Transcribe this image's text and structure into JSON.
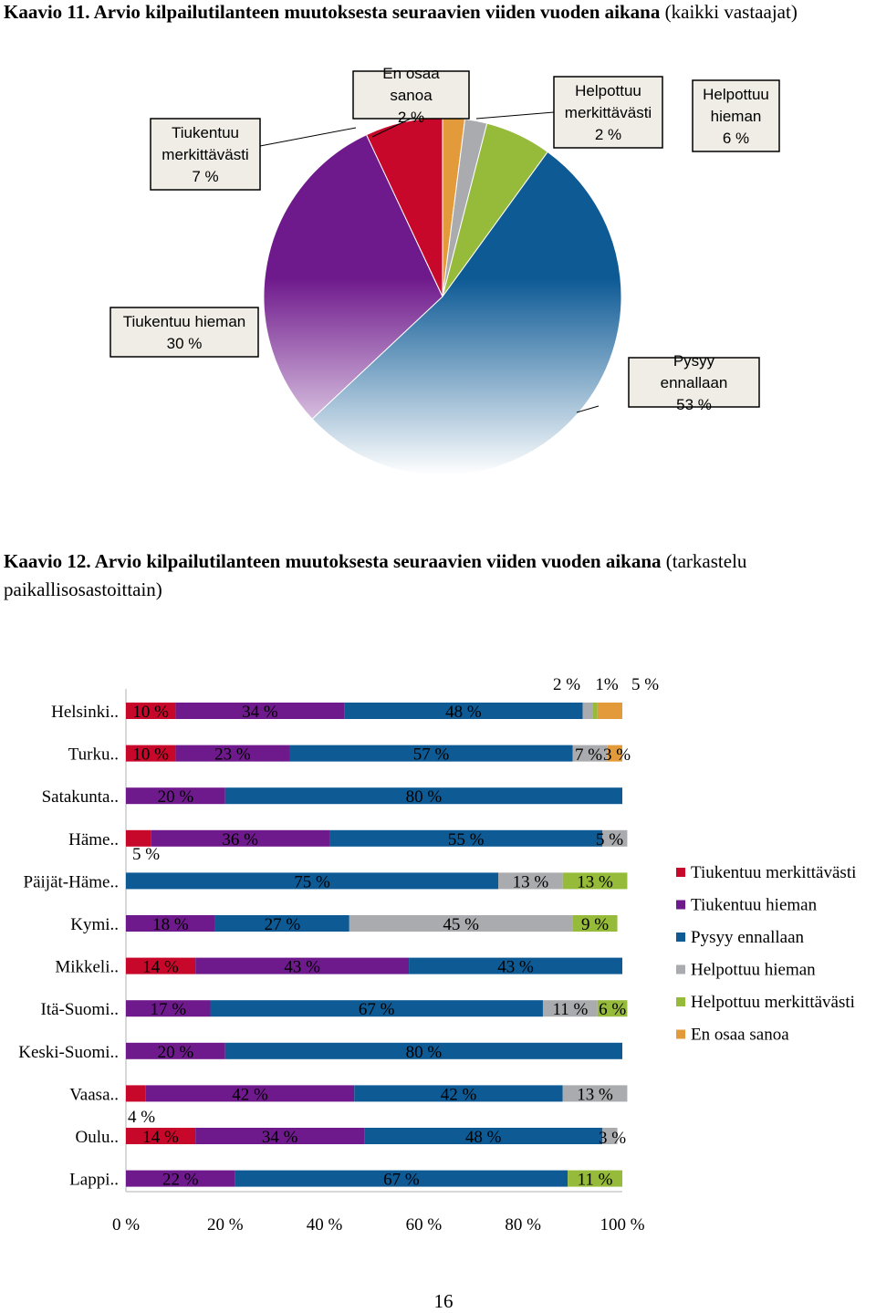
{
  "chart_data": [
    {
      "type": "pie",
      "caption_bold": "Kaavio 11. Arvio kilpailutilanteen muutoksesta seuraavien viiden vuoden aikana",
      "caption_normal": " (kaikki vastaajat)",
      "slices": [
        {
          "label": "En osaa sanoa",
          "value_label": "2 %",
          "value": 2,
          "color": "#e39a3b"
        },
        {
          "label": "Helpottuu merkittävästi",
          "value_label": "2 %",
          "value": 2,
          "color": "#a9abae"
        },
        {
          "label": "Helpottuu hieman",
          "value_label": "6 %",
          "value": 6,
          "color": "#96ba3a"
        },
        {
          "label": "Pysyy ennallaan",
          "value_label": "53 %",
          "value": 53,
          "color": "#0d5a95"
        },
        {
          "label": "Tiukentuu hieman",
          "value_label": "30 %",
          "value": 30,
          "color": "#6f1a8c"
        },
        {
          "label": "Tiukentuu merkittävästi",
          "value_label": "7 %",
          "value": 7,
          "color": "#c7082a"
        }
      ]
    },
    {
      "type": "bar",
      "orientation": "horizontal-stacked-100",
      "caption_bold": "Kaavio 12. Arvio kilpailutilanteen muutoksesta seuraavien viiden vuoden aikana",
      "caption_normal": " (tarkastelu paikallisosastoittain)",
      "xlim": [
        0,
        100
      ],
      "x_ticks": [
        "0 %",
        "20 %",
        "40 %",
        "60 %",
        "80 %",
        "100 %"
      ],
      "legend_position": "right",
      "series": [
        {
          "name": "Tiukentuu merkittävästi",
          "color": "#c7082a"
        },
        {
          "name": "Tiukentuu hieman",
          "color": "#6f1a8c"
        },
        {
          "name": "Pysyy ennallaan",
          "color": "#0d5a95"
        },
        {
          "name": "Helpottuu hieman",
          "color": "#a9abae"
        },
        {
          "name": "Helpottuu merkittävästi",
          "color": "#96ba3a"
        },
        {
          "name": "En osaa sanoa",
          "color": "#e39a3b"
        }
      ],
      "categories": [
        {
          "label": "Helsinki..",
          "values": [
            10,
            34,
            48,
            2,
            1,
            5
          ],
          "labels": [
            "10 %",
            "34 %",
            "48 %",
            "2 %",
            "1%",
            "5 %"
          ]
        },
        {
          "label": "Turku..",
          "values": [
            10,
            23,
            57,
            7,
            0,
            3
          ],
          "labels": [
            "10 %",
            "23 %",
            "57 %",
            "7 %",
            "",
            "3 %"
          ]
        },
        {
          "label": "Satakunta..",
          "values": [
            0,
            20,
            80,
            0,
            0,
            0
          ],
          "labels": [
            "",
            "20 %",
            "80 %",
            "",
            "",
            ""
          ]
        },
        {
          "label": "Häme..",
          "values": [
            5,
            36,
            55,
            5,
            0,
            0
          ],
          "labels": [
            "5 %",
            "36 %",
            "55 %",
            "5 %",
            "",
            ""
          ]
        },
        {
          "label": "Päijät-Häme..",
          "values": [
            0,
            0,
            75,
            13,
            13,
            0
          ],
          "labels": [
            "",
            "",
            "75 %",
            "13 %",
            "13 %",
            ""
          ]
        },
        {
          "label": "Kymi..",
          "values": [
            0,
            18,
            27,
            45,
            9,
            0
          ],
          "labels": [
            "",
            "18 %",
            "27 %",
            "45 %",
            "9 %",
            ""
          ]
        },
        {
          "label": "Mikkeli..",
          "values": [
            14,
            43,
            43,
            0,
            0,
            0
          ],
          "labels": [
            "14 %",
            "43 %",
            "43 %",
            "",
            "",
            ""
          ]
        },
        {
          "label": "Itä-Suomi..",
          "values": [
            0,
            17,
            67,
            11,
            6,
            0
          ],
          "labels": [
            "",
            "17 %",
            "67 %",
            "11 %",
            "6 %",
            ""
          ]
        },
        {
          "label": "Keski-Suomi..",
          "values": [
            0,
            20,
            80,
            0,
            0,
            0
          ],
          "labels": [
            "",
            "20 %",
            "80 %",
            "",
            "",
            ""
          ]
        },
        {
          "label": "Vaasa..",
          "values": [
            4,
            42,
            42,
            13,
            0,
            0
          ],
          "labels": [
            "4 %",
            "42 %",
            "42 %",
            "13 %",
            "",
            ""
          ]
        },
        {
          "label": "Oulu..",
          "values": [
            14,
            34,
            48,
            3,
            0,
            0
          ],
          "labels": [
            "14 %",
            "34 %",
            "48 %",
            "3 %",
            "",
            ""
          ]
        },
        {
          "label": "Lappi..",
          "values": [
            0,
            22,
            67,
            0,
            11,
            0
          ],
          "labels": [
            "",
            "22 %",
            "67 %",
            "",
            "11 %",
            ""
          ]
        }
      ]
    }
  ],
  "page_number": "16"
}
